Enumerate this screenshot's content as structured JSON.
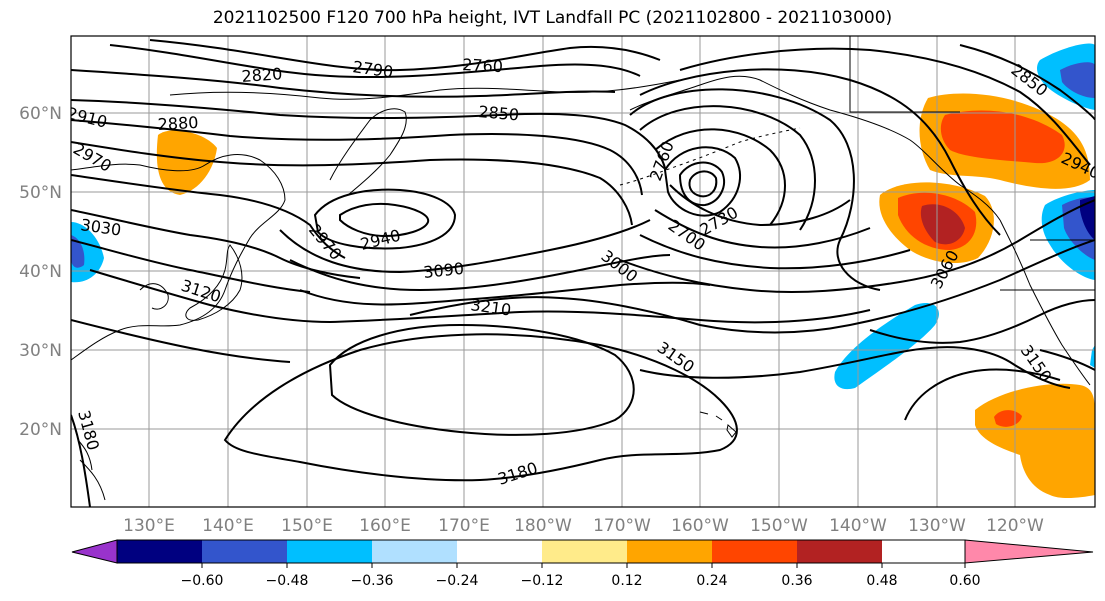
{
  "title": "2021102500 F120 700 hPa height, IVT Landfall PC (2021102800 - 2021103000)",
  "map": {
    "lat_labels": [
      "60°N",
      "50°N",
      "40°N",
      "30°N",
      "20°N"
    ],
    "lon_labels": [
      "130°E",
      "140°E",
      "150°E",
      "160°E",
      "170°E",
      "180°W",
      "170°W",
      "160°W",
      "150°W",
      "140°W",
      "130°W",
      "120°W"
    ],
    "contour_labels": [
      "2820",
      "2790",
      "2760",
      "2850",
      "2880",
      "2910",
      "2970",
      "3030",
      "2940",
      "2970",
      "3090",
      "3000",
      "2760",
      "2730",
      "2700",
      "3120",
      "3210",
      "3150",
      "3060",
      "3150",
      "3180",
      "3180",
      "2850",
      "2940"
    ]
  },
  "colorbar": {
    "colors": [
      "#9933cc",
      "#000080",
      "#3355cc",
      "#00bfff",
      "#b0e0ff",
      "#ffffff",
      "#ffeb8a",
      "#ffa500",
      "#ff4500",
      "#b22222",
      "#ff88aa"
    ],
    "labels": [
      "−0.60",
      "−0.48",
      "−0.36",
      "−0.24",
      "−0.12",
      "0.12",
      "0.24",
      "0.36",
      "0.48",
      "0.60"
    ]
  }
}
